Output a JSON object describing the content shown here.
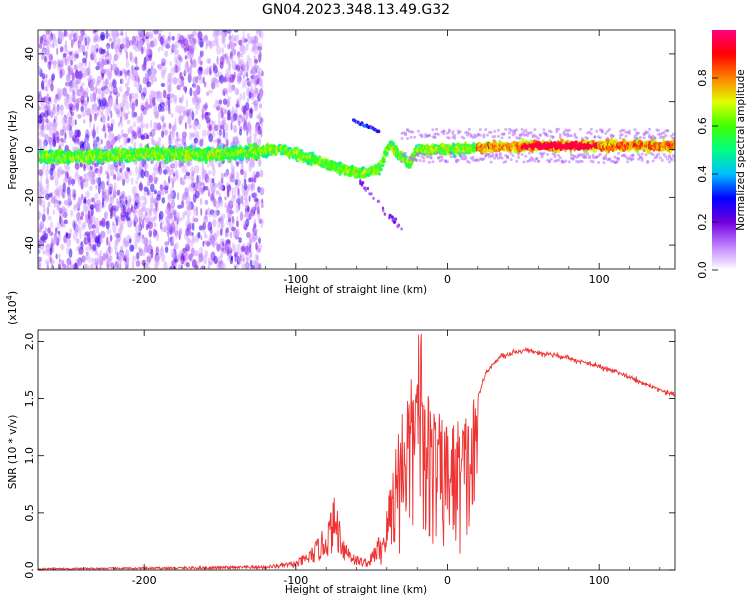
{
  "title": "GN04.2023.348.13.49.G32",
  "chart_data": [
    {
      "type": "heatmap",
      "name": "spectrogram",
      "xlabel": "Height of straight line (km)",
      "ylabel": "Frequency (Hz)",
      "xlim": [
        -270,
        150
      ],
      "ylim": [
        -50,
        50
      ],
      "xticks": [
        -200,
        -100,
        0,
        100
      ],
      "yticks": [
        -40,
        -20,
        0,
        20,
        40
      ],
      "ridge": [
        {
          "x": -265,
          "y": -3
        },
        {
          "x": -240,
          "y": -3
        },
        {
          "x": -200,
          "y": -2
        },
        {
          "x": -150,
          "y": -2
        },
        {
          "x": -125,
          "y": -1
        },
        {
          "x": -110,
          "y": 0
        },
        {
          "x": -95,
          "y": -3
        },
        {
          "x": -80,
          "y": -6
        },
        {
          "x": -65,
          "y": -9
        },
        {
          "x": -55,
          "y": -10
        },
        {
          "x": -45,
          "y": -8
        },
        {
          "x": -38,
          "y": 2
        },
        {
          "x": -30,
          "y": -3
        },
        {
          "x": -25,
          "y": -6
        },
        {
          "x": -20,
          "y": 0
        },
        {
          "x": 0,
          "y": 0
        },
        {
          "x": 30,
          "y": 1
        },
        {
          "x": 60,
          "y": 1.5
        },
        {
          "x": 100,
          "y": 1.5
        },
        {
          "x": 150,
          "y": 1.5
        }
      ],
      "colorbar": {
        "label": "Normalized spectral amplitude",
        "range": [
          0,
          1
        ],
        "ticks": [
          "0.0",
          "0.2",
          "0.4",
          "0.6",
          "0.8"
        ],
        "colors": [
          "#ffffff",
          "#c080ff",
          "#7000e0",
          "#0000ff",
          "#00c0ff",
          "#00ff80",
          "#40ff00",
          "#e0ff00",
          "#ff8000",
          "#ff0000",
          "#ff0080"
        ]
      }
    },
    {
      "type": "line",
      "name": "snr",
      "xlabel": "Height of straight line (km)",
      "ylabel": "SNR (10 * v/v)",
      "scale_label": "(x10",
      "scale_exp": "4",
      "scale_close": ")",
      "xlim": [
        -270,
        150
      ],
      "ylim": [
        0,
        2.1
      ],
      "xticks": [
        -200,
        -100,
        0,
        100
      ],
      "yticks": [
        "0.0",
        "0.5",
        "1.0",
        "1.5",
        "2.0"
      ],
      "color": "#ee3333",
      "envelope": [
        {
          "x": -270,
          "y": 0.01
        },
        {
          "x": -200,
          "y": 0.015
        },
        {
          "x": -150,
          "y": 0.02
        },
        {
          "x": -120,
          "y": 0.025
        },
        {
          "x": -100,
          "y": 0.05
        },
        {
          "x": -90,
          "y": 0.12
        },
        {
          "x": -80,
          "y": 0.25
        },
        {
          "x": -74,
          "y": 0.42
        },
        {
          "x": -68,
          "y": 0.18
        },
        {
          "x": -60,
          "y": 0.08
        },
        {
          "x": -52,
          "y": 0.06
        },
        {
          "x": -45,
          "y": 0.2
        },
        {
          "x": -40,
          "y": 0.5
        },
        {
          "x": -35,
          "y": 1.0
        },
        {
          "x": -28,
          "y": 1.5
        },
        {
          "x": -22,
          "y": 1.55
        },
        {
          "x": -18,
          "y": 1.45
        },
        {
          "x": -12,
          "y": 1.45
        },
        {
          "x": -8,
          "y": 1.3
        },
        {
          "x": -3,
          "y": 1.2
        },
        {
          "x": 5,
          "y": 1.2
        },
        {
          "x": 15,
          "y": 1.3
        },
        {
          "x": 25,
          "y": 1.72
        },
        {
          "x": 35,
          "y": 1.87
        },
        {
          "x": 50,
          "y": 1.92
        },
        {
          "x": 70,
          "y": 1.88
        },
        {
          "x": 90,
          "y": 1.82
        },
        {
          "x": 110,
          "y": 1.74
        },
        {
          "x": 130,
          "y": 1.63
        },
        {
          "x": 150,
          "y": 1.53
        }
      ]
    }
  ]
}
